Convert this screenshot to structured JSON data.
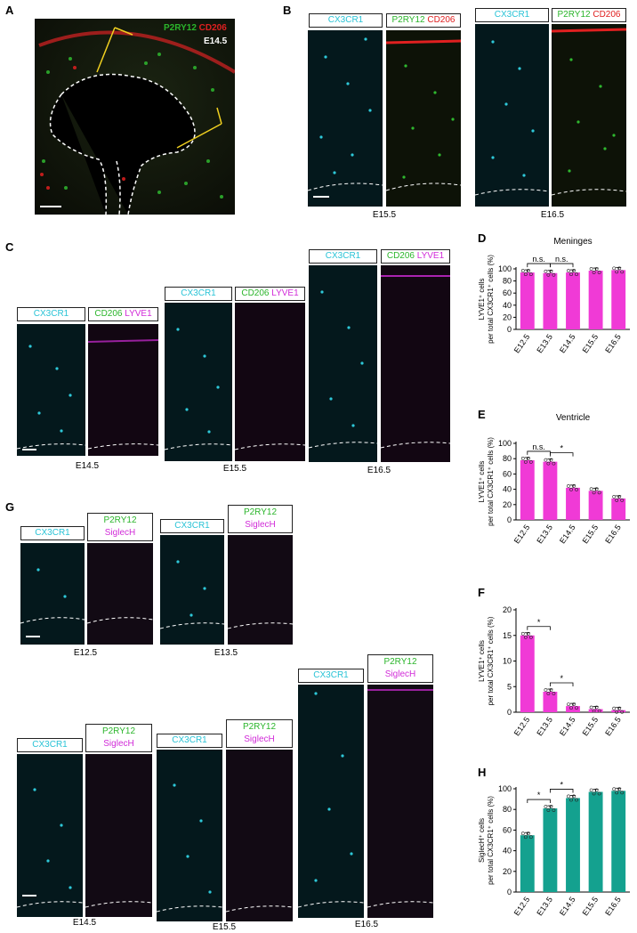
{
  "panels": {
    "A": {
      "letter": "A",
      "marker1": "P2RY12",
      "marker2": "CD206",
      "stage": "E14.5"
    },
    "B": {
      "letter": "B",
      "lbl_cx3cr1": "CX3CR1",
      "lbl_p2ry12": "P2RY12",
      "lbl_cd206": "CD206",
      "stage1": "E15.5",
      "stage2": "E16.5"
    },
    "C": {
      "letter": "C",
      "lbl_cx3cr1": "CX3CR1",
      "lbl_cd206": "CD206",
      "lbl_lyve1": "LYVE1",
      "stage1": "E14.5",
      "stage2": "E15.5",
      "stage3": "E16.5"
    },
    "G": {
      "letter": "G",
      "lbl_cx3cr1": "CX3CR1",
      "lbl_p2ry12": "P2RY12",
      "lbl_siglech": "SiglecH",
      "stage1": "E12.5",
      "stage2": "E13.5",
      "stage3": "E14.5",
      "stage4": "E15.5",
      "stage5": "E16.5"
    }
  },
  "chart_data": [
    {
      "panel": "D",
      "type": "bar",
      "title": "Meninges",
      "ylabel_line1": "LYVE1⁺ cells",
      "ylabel_line2": "per total CX3CR1⁺ cells (%)",
      "categories": [
        "E12.5",
        "E13.5",
        "E14.5",
        "E15.5",
        "E16.5"
      ],
      "values": [
        94,
        93,
        94,
        97,
        98
      ],
      "ylim": [
        0,
        100
      ],
      "yticks": [
        0,
        20,
        40,
        60,
        80,
        100
      ],
      "color": "#f03ad6",
      "sig": [
        {
          "from": 0,
          "to": 1,
          "label": "n.s."
        },
        {
          "from": 1,
          "to": 2,
          "label": "n.s."
        }
      ]
    },
    {
      "panel": "E",
      "type": "bar",
      "title": "Ventricle",
      "ylabel_line1": "LYVE1⁺ cells",
      "ylabel_line2": "per total CX3CR1⁺ cells (%)",
      "categories": [
        "E12.5",
        "E13.5",
        "E14.5",
        "E15.5",
        "E16.5"
      ],
      "values": [
        78,
        76,
        42,
        38,
        28
      ],
      "ylim": [
        0,
        100
      ],
      "yticks": [
        0,
        20,
        40,
        60,
        80,
        100
      ],
      "color": "#f03ad6",
      "sig": [
        {
          "from": 0,
          "to": 1,
          "label": "n.s."
        },
        {
          "from": 1,
          "to": 2,
          "label": "*"
        }
      ]
    },
    {
      "panel": "F",
      "type": "bar",
      "title": "",
      "ylabel_line1": "LYVE1⁺ cells",
      "ylabel_line2": "per total CX3CR1⁺ cells (%)",
      "categories": [
        "E12.5",
        "E13.5",
        "E14.5",
        "E15.5",
        "E16.5"
      ],
      "values": [
        15,
        4,
        1.2,
        0.6,
        0.4
      ],
      "ylim": [
        0,
        20
      ],
      "yticks": [
        0,
        5,
        10,
        15,
        20
      ],
      "color": "#f03ad6",
      "sig": [
        {
          "from": 0,
          "to": 1,
          "label": "*"
        },
        {
          "from": 1,
          "to": 2,
          "label": "*"
        }
      ]
    },
    {
      "panel": "H",
      "type": "bar",
      "title": "",
      "ylabel_line1": "SiglecH⁺ cells",
      "ylabel_line2": "per total CX3CR1⁺ cells (%)",
      "categories": [
        "E12.5",
        "E13.5",
        "E14.5",
        "E15.5",
        "E16.5"
      ],
      "values": [
        55,
        81,
        91,
        97,
        98
      ],
      "ylim": [
        0,
        100
      ],
      "yticks": [
        0,
        20,
        40,
        60,
        80,
        100
      ],
      "color": "#14a18f",
      "sig": [
        {
          "from": 0,
          "to": 1,
          "label": "*"
        },
        {
          "from": 1,
          "to": 2,
          "label": "*"
        }
      ]
    }
  ]
}
